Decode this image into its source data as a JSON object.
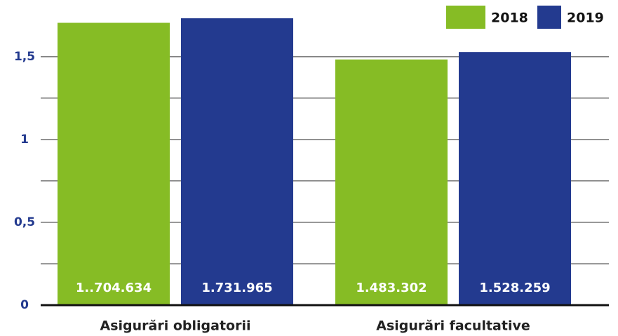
{
  "chart_data": {
    "type": "bar",
    "categories": [
      "Asigurări obligatorii",
      "Asigurări facultative"
    ],
    "series": [
      {
        "name": "2018",
        "color": "#86bc25",
        "values": [
          1.704634,
          1.483302
        ],
        "value_labels": [
          "1..704.634",
          "1.483.302"
        ]
      },
      {
        "name": "2019",
        "color": "#233a8f",
        "values": [
          1.731965,
          1.528259
        ],
        "value_labels": [
          "1.731.965",
          "1.528.259"
        ]
      }
    ],
    "ylim": [
      0,
      1.8
    ],
    "yticks": [
      0,
      {
        "value": 0.5,
        "label": "0,5"
      },
      1,
      {
        "value": 1.5,
        "label": "1,5"
      }
    ],
    "yticks_minor": [
      0.25,
      0.75,
      1.25
    ],
    "grid": true,
    "legend": "top-right"
  }
}
